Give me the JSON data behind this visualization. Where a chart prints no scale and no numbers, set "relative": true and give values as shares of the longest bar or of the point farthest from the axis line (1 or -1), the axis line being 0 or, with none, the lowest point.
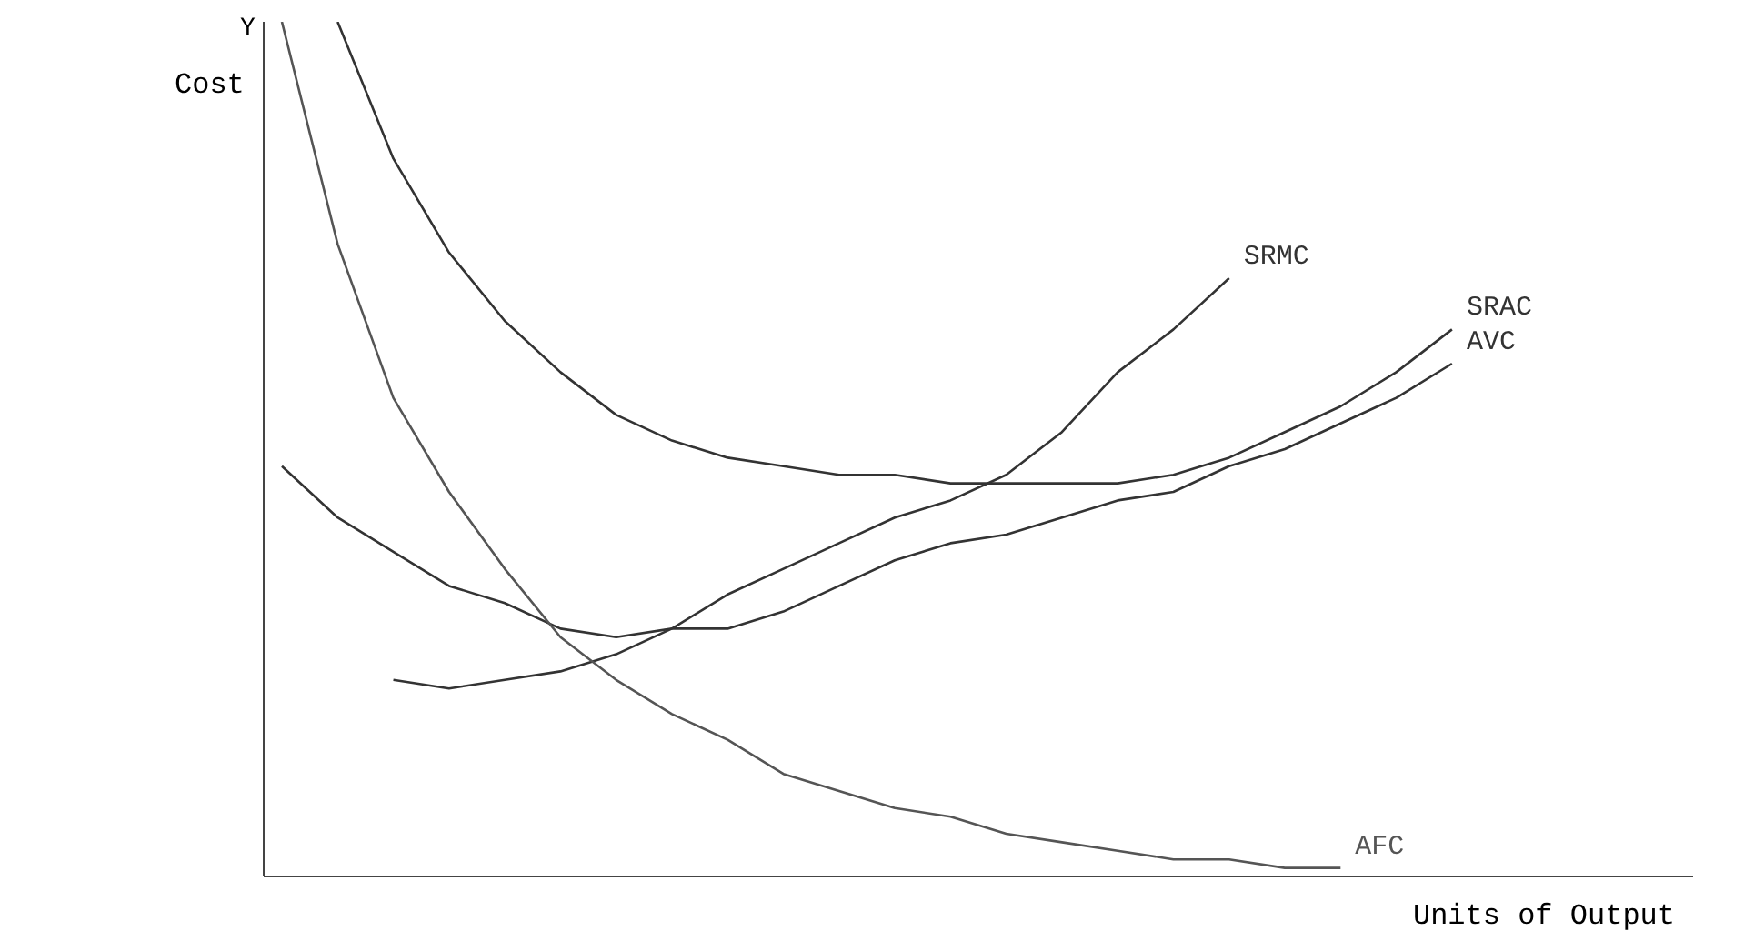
{
  "chart_data": {
    "type": "line",
    "relative": true,
    "xlabel": "Units of Output",
    "ylabel": "Cost",
    "annotations": [
      "Y"
    ],
    "grid": false,
    "legend": false,
    "marker": "none",
    "line_style": "solid",
    "categories": [
      null,
      null,
      null,
      null,
      null,
      null,
      null,
      null,
      null,
      null,
      null,
      null,
      null,
      null,
      null,
      null,
      null,
      null,
      null,
      null,
      null,
      null,
      null,
      null,
      null,
      null
    ],
    "series": [
      {
        "name": "SRMC",
        "color": "#333333",
        "values": [
          null,
          null,
          0.23,
          0.22,
          0.23,
          0.24,
          0.26,
          0.29,
          0.33,
          0.36,
          0.39,
          0.42,
          0.44,
          0.47,
          0.52,
          0.59,
          0.64,
          0.7,
          null,
          null,
          null,
          null,
          null,
          null,
          null,
          null
        ]
      },
      {
        "name": "SRAC",
        "color": "#333333",
        "values": [
          null,
          1.0,
          0.84,
          0.73,
          0.65,
          0.59,
          0.54,
          0.51,
          0.49,
          0.48,
          0.47,
          0.47,
          0.46,
          0.46,
          0.46,
          0.46,
          0.47,
          0.49,
          0.52,
          0.55,
          0.59,
          0.64,
          null,
          null,
          null,
          null
        ]
      },
      {
        "name": "AVC",
        "color": "#333333",
        "values": [
          0.48,
          0.42,
          0.38,
          0.34,
          0.32,
          0.29,
          0.28,
          0.29,
          0.29,
          0.31,
          0.34,
          0.37,
          0.39,
          0.4,
          0.42,
          0.44,
          0.45,
          0.48,
          0.5,
          0.53,
          0.56,
          0.6,
          null,
          null,
          null,
          null
        ]
      },
      {
        "name": "AFC",
        "color": "#555555",
        "values": [
          1.0,
          0.74,
          0.56,
          0.45,
          0.36,
          0.28,
          0.23,
          0.19,
          0.16,
          0.12,
          0.1,
          0.08,
          0.07,
          0.05,
          0.04,
          0.03,
          0.02,
          0.02,
          0.01,
          0.01,
          null,
          null,
          null,
          null,
          null,
          null
        ]
      }
    ]
  }
}
